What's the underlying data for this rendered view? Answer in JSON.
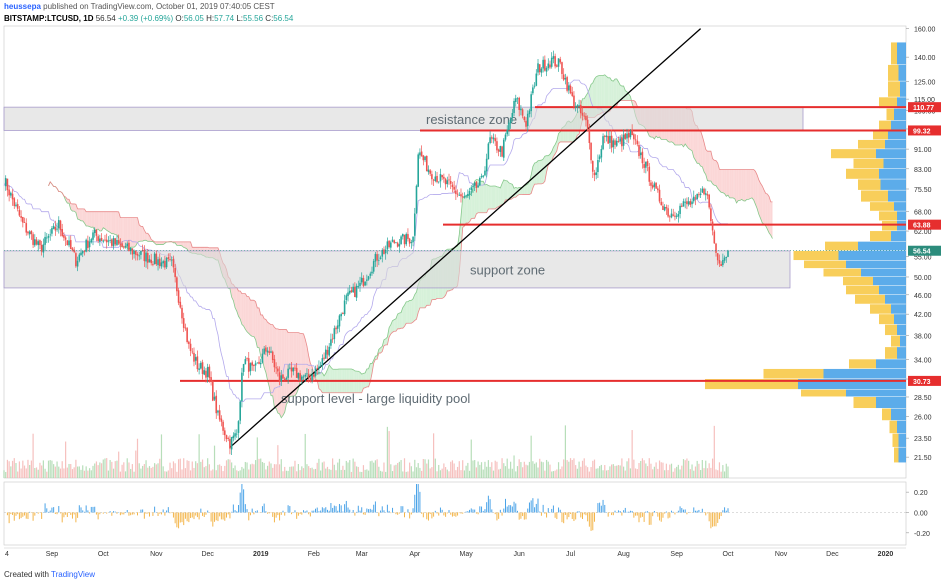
{
  "header": {
    "publisher_user": "heussepa",
    "publisher_rest": "published on TradingView.com, October 01, 2019 07:40:05 CEST",
    "symbol": "BITSTAMP:LTCUSD, 1D",
    "last": "56.54",
    "change": "+0.39 (+0.69%)",
    "o_label": "O:",
    "o": "56.05",
    "h_label": "H:",
    "h": "57.74",
    "l_label": "L:",
    "l": "55.56",
    "c_label": "C:",
    "c": "56.54"
  },
  "footer": {
    "created_with": "Created with",
    "brand": "TradingView"
  },
  "colors": {
    "up": "#26a69a",
    "down": "#ef5350",
    "level": "#e62e2e",
    "zone_fill": "#d8d8d8",
    "zone_border": "#a89ccc",
    "cloud_bull": "#c8eccc",
    "cloud_bear": "#f9c9c9",
    "vp_blue": "#4aa3e8",
    "vp_yellow": "#f7c948",
    "trendline": "#000000",
    "price_label_bg": "#e62e2e",
    "last_label_bg": "#2c8c7c"
  },
  "chart_data": {
    "type": "candlestick",
    "symbol": "BITSTAMP:LTCUSD",
    "timeframe": "1D",
    "y_scale": "log",
    "ylim": [
      19.5,
      162
    ],
    "y_ticks": [
      "160.00",
      "140.00",
      "125.00",
      "115.00",
      "109.00",
      "100.00",
      "91.00",
      "83.00",
      "75.50",
      "68.00",
      "62.00",
      "55.00",
      "50.00",
      "46.00",
      "42.00",
      "38.00",
      "34.00",
      "31.00",
      "28.50",
      "26.00",
      "23.50",
      "21.50"
    ],
    "x_ticks": [
      "4",
      "Sep",
      "Oct",
      "Nov",
      "Dec",
      "2019",
      "Feb",
      "Mar",
      "Apr",
      "May",
      "Jun",
      "Jul",
      "Aug",
      "Sep",
      "Oct",
      "Nov",
      "Dec",
      "2020"
    ],
    "price_path": [
      [
        "2018-08-04",
        79
      ],
      [
        "2018-08-15",
        64
      ],
      [
        "2018-08-25",
        57
      ],
      [
        "2018-09-05",
        64
      ],
      [
        "2018-09-15",
        54
      ],
      [
        "2018-09-25",
        61
      ],
      [
        "2018-10-05",
        59
      ],
      [
        "2018-10-20",
        56
      ],
      [
        "2018-11-01",
        54
      ],
      [
        "2018-11-10",
        53
      ],
      [
        "2018-11-15",
        44
      ],
      [
        "2018-11-20",
        36
      ],
      [
        "2018-11-25",
        33
      ],
      [
        "2018-12-01",
        32
      ],
      [
        "2018-12-07",
        26
      ],
      [
        "2018-12-14",
        23
      ],
      [
        "2018-12-18",
        24
      ],
      [
        "2018-12-22",
        34
      ],
      [
        "2018-12-28",
        32
      ],
      [
        "2019-01-05",
        36
      ],
      [
        "2019-01-12",
        31
      ],
      [
        "2019-01-20",
        32
      ],
      [
        "2019-01-28",
        31
      ],
      [
        "2019-02-05",
        33
      ],
      [
        "2019-02-12",
        38
      ],
      [
        "2019-02-20",
        45
      ],
      [
        "2019-02-28",
        48
      ],
      [
        "2019-03-10",
        55
      ],
      [
        "2019-03-20",
        59
      ],
      [
        "2019-03-31",
        60
      ],
      [
        "2019-04-03",
        90
      ],
      [
        "2019-04-10",
        82
      ],
      [
        "2019-04-20",
        77
      ],
      [
        "2019-04-30",
        72
      ],
      [
        "2019-05-10",
        78
      ],
      [
        "2019-05-15",
        95
      ],
      [
        "2019-05-22",
        90
      ],
      [
        "2019-05-30",
        115
      ],
      [
        "2019-06-05",
        103
      ],
      [
        "2019-06-12",
        133
      ],
      [
        "2019-06-20",
        138
      ],
      [
        "2019-06-25",
        135
      ],
      [
        "2019-07-02",
        115
      ],
      [
        "2019-07-10",
        103
      ],
      [
        "2019-07-15",
        80
      ],
      [
        "2019-07-20",
        96
      ],
      [
        "2019-07-28",
        93
      ],
      [
        "2019-08-05",
        97
      ],
      [
        "2019-08-12",
        87
      ],
      [
        "2019-08-20",
        74
      ],
      [
        "2019-08-28",
        67
      ],
      [
        "2019-09-05",
        70
      ],
      [
        "2019-09-12",
        71
      ],
      [
        "2019-09-18",
        76
      ],
      [
        "2019-09-24",
        56
      ],
      [
        "2019-09-27",
        54
      ],
      [
        "2019-10-01",
        56.54
      ]
    ],
    "annotations": [
      {
        "text": "resistance zone",
        "range": [
          99.32,
          110.77
        ]
      },
      {
        "text": "support zone",
        "range": [
          47.5,
          56.5
        ]
      },
      {
        "text": "support level - large liquidity pool",
        "value": 30.73
      }
    ],
    "levels": [
      {
        "label": "110.77",
        "value": 110.77
      },
      {
        "label": "99.32",
        "value": 99.32
      },
      {
        "label": "63.88",
        "value": 63.88
      },
      {
        "label": "30.73",
        "value": 30.73
      }
    ],
    "last_price": {
      "label": "56.54",
      "value": 56.54
    },
    "trendline": {
      "from": [
        "2018-12-14",
        22.5
      ],
      "to": [
        "2019-09-15",
        160
      ]
    },
    "volume_profile": [
      [
        150,
        0.06,
        0.04
      ],
      [
        135,
        0.05,
        0.07
      ],
      [
        125,
        0.04,
        0.08
      ],
      [
        116,
        0.06,
        0.12
      ],
      [
        110,
        0.08,
        0.05
      ],
      [
        104,
        0.1,
        0.08
      ],
      [
        99,
        0.12,
        0.1
      ],
      [
        95,
        0.14,
        0.18
      ],
      [
        91,
        0.2,
        0.3
      ],
      [
        87,
        0.15,
        0.2
      ],
      [
        83,
        0.18,
        0.22
      ],
      [
        79,
        0.17,
        0.15
      ],
      [
        75,
        0.12,
        0.18
      ],
      [
        71,
        0.08,
        0.16
      ],
      [
        68,
        0.06,
        0.12
      ],
      [
        65,
        0.06,
        0.1
      ],
      [
        62,
        0.1,
        0.14
      ],
      [
        59,
        0.32,
        0.22
      ],
      [
        56.5,
        0.45,
        0.3
      ],
      [
        54,
        0.4,
        0.28
      ],
      [
        52,
        0.3,
        0.25
      ],
      [
        50,
        0.22,
        0.2
      ],
      [
        48,
        0.18,
        0.22
      ],
      [
        46,
        0.14,
        0.2
      ],
      [
        44,
        0.1,
        0.14
      ],
      [
        42,
        0.08,
        0.1
      ],
      [
        40,
        0.06,
        0.08
      ],
      [
        38,
        0.04,
        0.06
      ],
      [
        36,
        0.06,
        0.08
      ],
      [
        34,
        0.2,
        0.18
      ],
      [
        32.5,
        0.55,
        0.4
      ],
      [
        31,
        0.72,
        0.62
      ],
      [
        29.5,
        0.4,
        0.3
      ],
      [
        28.5,
        0.2,
        0.15
      ],
      [
        27,
        0.1,
        0.06
      ],
      [
        25.5,
        0.06,
        0.05
      ],
      [
        24,
        0.05,
        0.04
      ],
      [
        22.5,
        0.05,
        0.03
      ]
    ],
    "oscillator": {
      "ylim": [
        -0.32,
        0.3
      ],
      "ticks": [
        "0.20",
        "0.00",
        "-0.20"
      ]
    }
  }
}
